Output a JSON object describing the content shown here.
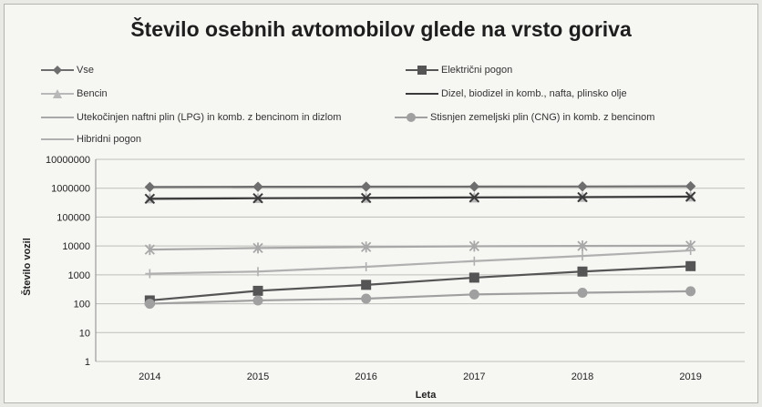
{
  "chart_data": {
    "type": "line",
    "title": "Število osebnih avtomobilov glede na vrsto goriva",
    "xlabel": "Leta",
    "ylabel": "Število vozil",
    "categories": [
      "2014",
      "2015",
      "2016",
      "2017",
      "2018",
      "2019"
    ],
    "y_scale": "log",
    "ylim": [
      1,
      10000000
    ],
    "yticks": [
      "1",
      "10",
      "100",
      "1000",
      "10000",
      "100000",
      "1000000",
      "10000000"
    ],
    "grid": "horizontal",
    "legend_position": "top",
    "series": [
      {
        "name": "Vse",
        "marker": "diamond",
        "color": "#6e6e6e",
        "values": [
          1100000,
          1120000,
          1130000,
          1140000,
          1150000,
          1170000
        ]
      },
      {
        "name": "Električni pogon",
        "marker": "square",
        "color": "#555555",
        "values": [
          130,
          280,
          450,
          800,
          1300,
          2000
        ]
      },
      {
        "name": "Bencin",
        "marker": "triangle",
        "color": "#b8b8b8",
        "values": [
          450000,
          455000,
          470000,
          480000,
          500000,
          520000
        ]
      },
      {
        "name": "Dizel, biodizel in komb., nafta, plinsko olje",
        "marker": "x",
        "color": "#3a3a3a",
        "values": [
          430000,
          450000,
          460000,
          480000,
          490000,
          510000
        ]
      },
      {
        "name": "Utekočinjen naftni plin (LPG) in komb. z bencinom in dizlom",
        "marker": "star",
        "color": "#a8a8a8",
        "values": [
          7500,
          8500,
          9200,
          9800,
          10000,
          10200
        ]
      },
      {
        "name": "Stisnjen zemeljski plin (CNG) in komb. z bencinom",
        "marker": "circle",
        "color": "#a0a0a0",
        "values": [
          100,
          130,
          150,
          210,
          240,
          270
        ]
      },
      {
        "name": "Hibridni pogon",
        "marker": "plus",
        "color": "#b0b0b0",
        "values": [
          1100,
          1300,
          1900,
          3000,
          4500,
          7000
        ]
      }
    ]
  }
}
